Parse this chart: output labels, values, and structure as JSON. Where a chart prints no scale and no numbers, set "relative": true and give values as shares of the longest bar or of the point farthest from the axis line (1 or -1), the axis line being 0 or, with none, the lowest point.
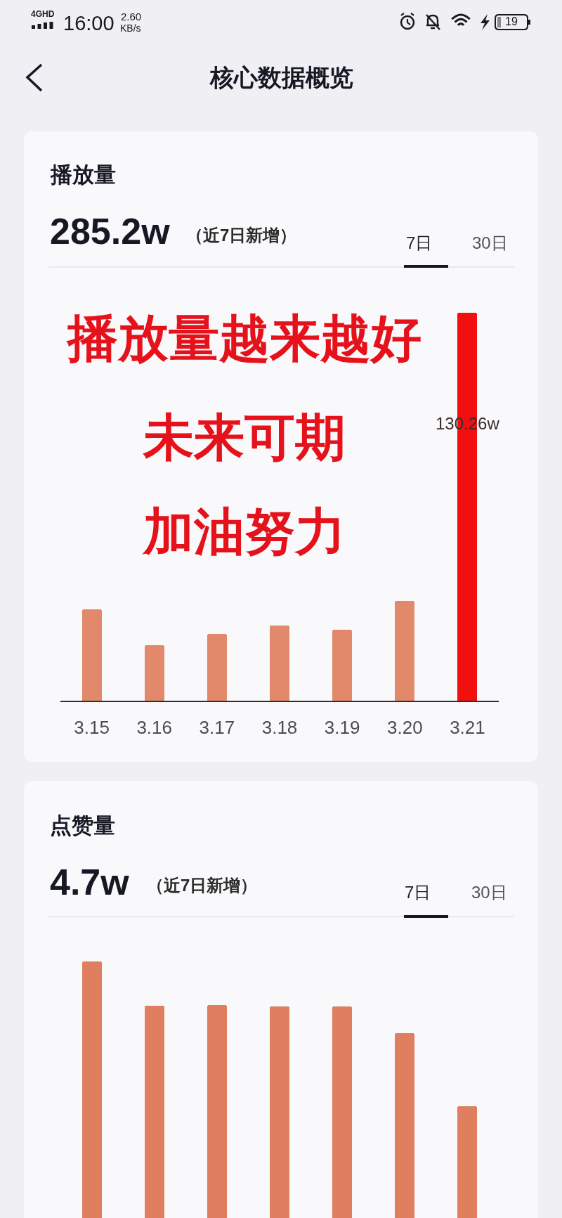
{
  "chart_data": [
    {
      "type": "bar",
      "title": "播放量",
      "subtitle": "285.2w",
      "annotations": [
        "16:00",
        "4GHD",
        "2.60",
        "KB/s",
        "19",
        "核心数据概览",
        "（近7日新增）",
        "7日",
        "30日",
        "播放量越来越好",
        "未来可期",
        "加油努力"
      ],
      "categories": [
        "3.15",
        "3.16",
        "3.17",
        "3.18",
        "3.19",
        "3.20",
        "3.21"
      ],
      "values": [
        30.7,
        18.6,
        22.5,
        25.3,
        23.8,
        33.5,
        130.26
      ],
      "colors": [
        "#e2886b",
        "#e2886b",
        "#e2886b",
        "#e2886b",
        "#e2886b",
        "#e2886b",
        "#f20f0f"
      ],
      "value_labels": [
        null,
        null,
        null,
        null,
        null,
        null,
        "130.26w"
      ]
    },
    {
      "type": "bar",
      "title": "点赞量",
      "subtitle": "4.7w",
      "annotations": [
        "（近7日新增）",
        "7日",
        "30日"
      ],
      "categories": [
        null,
        null,
        null,
        null,
        null,
        null,
        null
      ],
      "values": [
        1,
        0.827,
        0.83,
        0.824,
        0.824,
        0.72,
        0.435
      ],
      "color": "#df7f5f",
      "relative": true
    }
  ]
}
